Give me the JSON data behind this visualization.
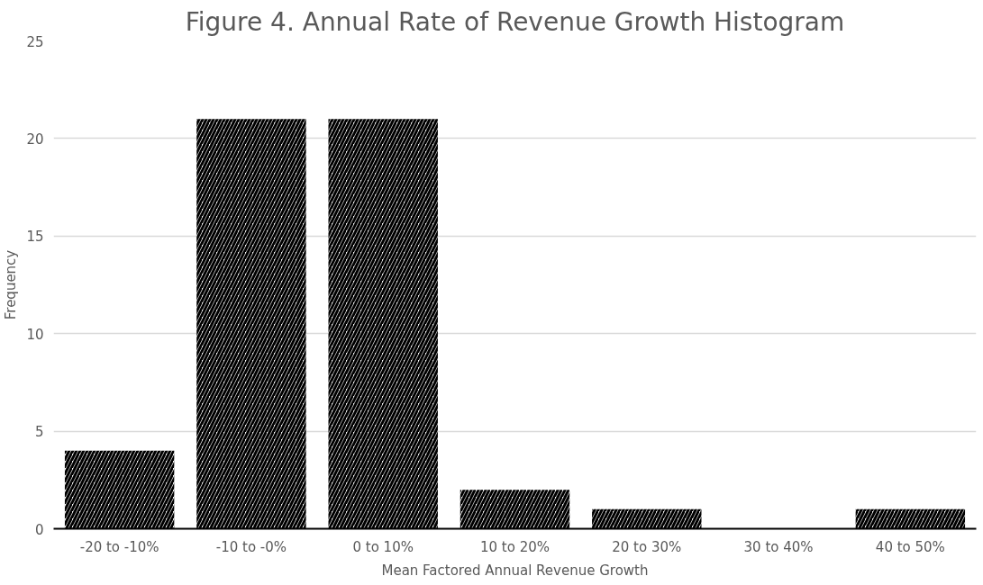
{
  "chart_data": {
    "type": "bar",
    "title": "Figure 4. Annual Rate of Revenue Growth Histogram",
    "xlabel": "Mean Factored Annual Revenue Growth",
    "ylabel": "Frequency",
    "categories": [
      "-20 to -10%",
      "-10 to -0%",
      "0 to 10%",
      "10 to 20%",
      "20 to 30%",
      "30 to 40%",
      "40 to 50%"
    ],
    "values": [
      4,
      21,
      21,
      2,
      1,
      0,
      1
    ],
    "color": "#000000",
    "ylim": [
      0,
      25
    ],
    "yticks": [
      0,
      5,
      10,
      15,
      20,
      25
    ],
    "grid": "y"
  }
}
